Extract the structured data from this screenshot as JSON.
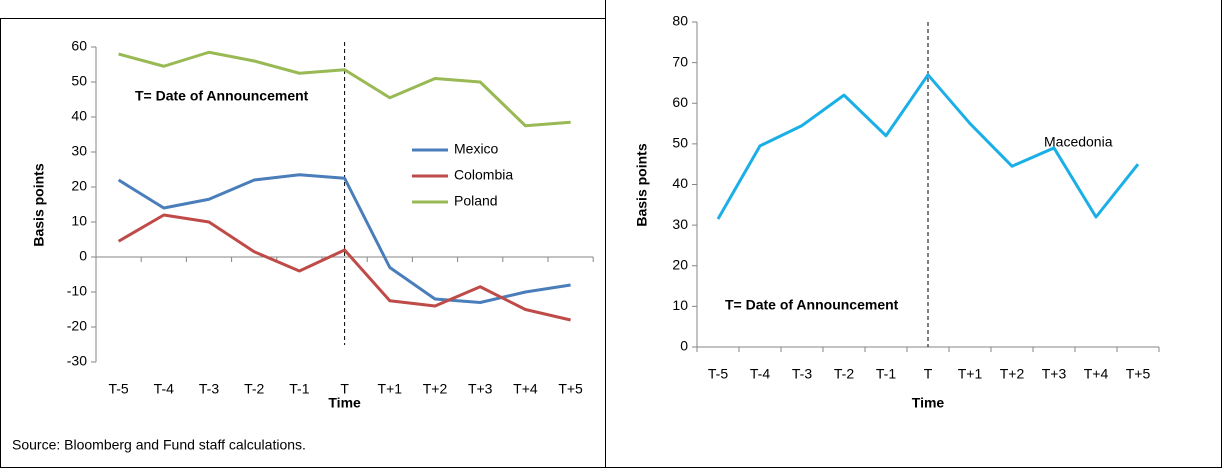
{
  "chart_data": [
    {
      "type": "line",
      "xlabel": "Time",
      "ylabel": "Basis points",
      "annotation": "T= Date of Announcement",
      "source": "Source: Bloomberg and Fund staff calculations.",
      "categories": [
        "T-5",
        "T-4",
        "T-3",
        "T-2",
        "T-1",
        "T",
        "T+1",
        "T+2",
        "T+3",
        "T+4",
        "T+5"
      ],
      "series": [
        {
          "name": "Mexico",
          "color": "#4a7ebb",
          "values": [
            22,
            14,
            16.5,
            22,
            23.5,
            22.5,
            -3,
            -12,
            -13,
            -10,
            -8
          ]
        },
        {
          "name": "Colombia",
          "color": "#be4b48",
          "values": [
            4.5,
            12,
            10,
            1.5,
            -4,
            2,
            -12.5,
            -14,
            -8.5,
            -15,
            -18
          ]
        },
        {
          "name": "Poland",
          "color": "#98b954",
          "values": [
            58,
            54.5,
            58.5,
            56,
            52.5,
            53.5,
            45.5,
            51,
            50,
            37.5,
            38.5
          ]
        }
      ],
      "ylim": [
        -30,
        60
      ],
      "yticks": [
        -30,
        -20,
        -10,
        0,
        10,
        20,
        30,
        40,
        50,
        60
      ]
    },
    {
      "type": "line",
      "xlabel": "Time",
      "ylabel": "Basis points",
      "annotation": "T= Date of Announcement",
      "categories": [
        "T-5",
        "T-4",
        "T-3",
        "T-2",
        "T-1",
        "T",
        "T+1",
        "T+2",
        "T+3",
        "T+4",
        "T+5"
      ],
      "series": [
        {
          "name": "Macedonia",
          "color": "#1aafe6",
          "values": [
            31.5,
            49.5,
            54.5,
            62,
            52,
            67,
            55,
            44.5,
            49,
            32,
            45
          ]
        }
      ],
      "ylim": [
        0,
        80
      ],
      "yticks": [
        0,
        10,
        20,
        30,
        40,
        50,
        60,
        70,
        80
      ]
    }
  ]
}
